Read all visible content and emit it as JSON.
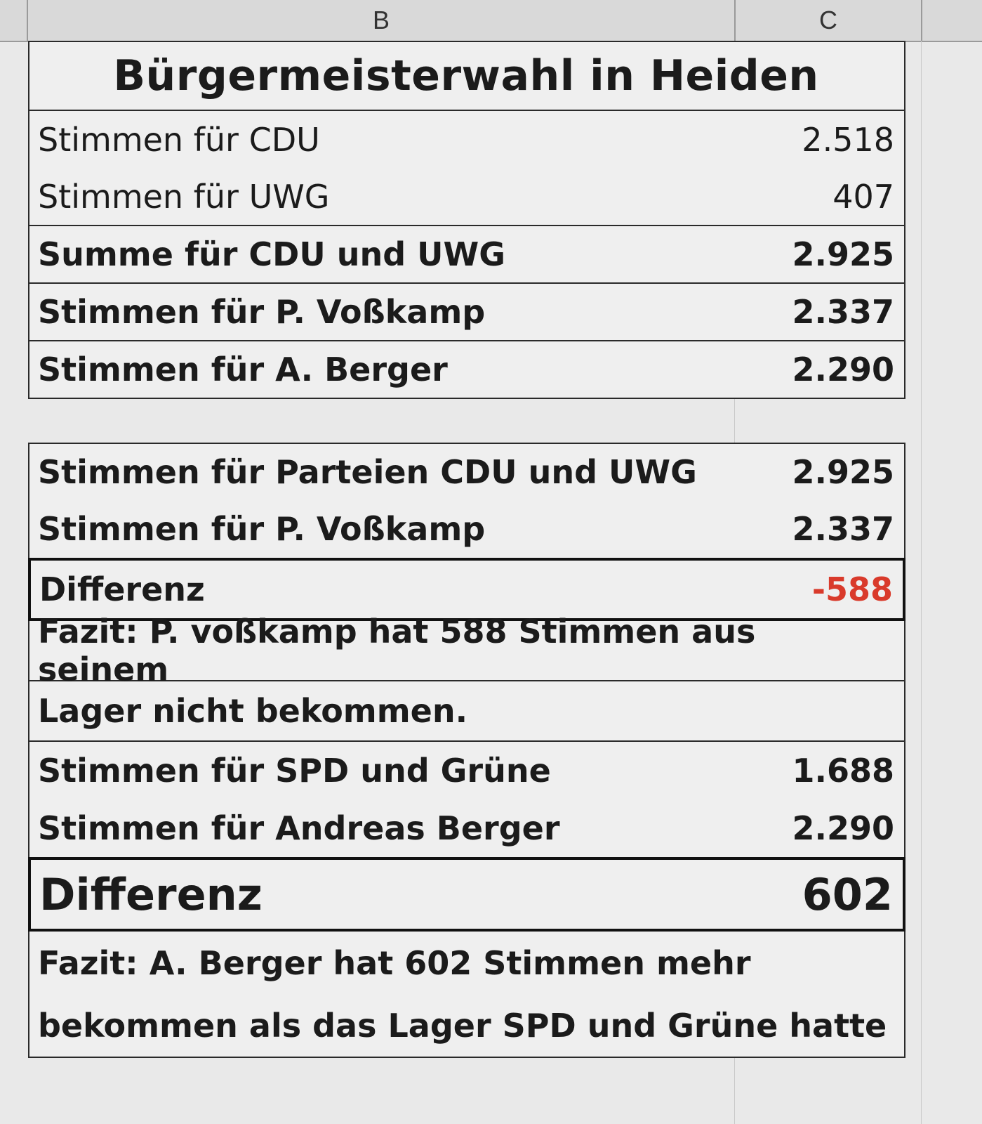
{
  "columns": {
    "b": "B",
    "c": "C"
  },
  "table1": {
    "title": "Bürgermeisterwahl in Heiden",
    "rows": [
      {
        "label": "Stimmen für CDU",
        "value": "2.518"
      },
      {
        "label": "Stimmen für UWG",
        "value": "407"
      },
      {
        "label": "Summe für CDU und UWG",
        "value": "2.925"
      },
      {
        "label": "Stimmen für P. Voßkamp",
        "value": "2.337"
      },
      {
        "label": "Stimmen für A. Berger",
        "value": "2.290"
      }
    ]
  },
  "table2": {
    "rows": [
      {
        "label": "Stimmen für Parteien CDU und UWG",
        "value": "2.925"
      },
      {
        "label": "Stimmen für P. Voßkamp",
        "value": "2.337"
      }
    ],
    "diff_label": "Differenz",
    "diff_value": "-588",
    "fazit_line1": "Fazit: P. voßkamp hat 588 Stimmen aus seinem",
    "fazit_line2": "Lager nicht bekommen."
  },
  "table3": {
    "rows": [
      {
        "label": "Stimmen für SPD und Grüne",
        "value": "1.688"
      },
      {
        "label": "Stimmen für Andreas Berger",
        "value": "2.290"
      }
    ],
    "diff_label": "Differenz",
    "diff_value": "602",
    "fazit_line1": "Fazit: A. Berger hat 602 Stimmen mehr",
    "fazit_line2": "bekommen als das Lager SPD und Grüne hatte"
  },
  "colors": {
    "negative": "#d93a2b",
    "border": "#2a2a2a"
  }
}
